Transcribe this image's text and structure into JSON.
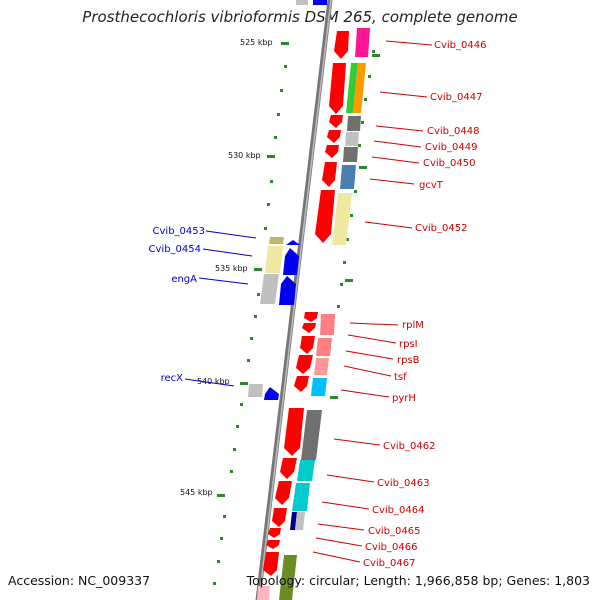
{
  "title": "Prosthecochloris vibrioformis DSM 265, complete genome",
  "footer": {
    "accession": "Accession: NC_009337",
    "summary": "Topology: circular; Length: 1,966,858 bp; Genes: 1,803"
  },
  "scale_labels": [
    "525 kbp",
    "530 kbp",
    "535 kbp",
    "540 kbp",
    "545 kbp"
  ],
  "right_labels": [
    "Cvib_0446",
    "Cvib_0447",
    "Cvib_0448",
    "Cvib_0449",
    "Cvib_0450",
    "gcvT",
    "Cvib_0452",
    "rplM",
    "rpsI",
    "rpsB",
    "tsf",
    "pyrH",
    "Cvib_0462",
    "Cvib_0463",
    "Cvib_0464",
    "Cvib_0465",
    "Cvib_0466",
    "Cvib_0467"
  ],
  "left_labels": [
    "Cvib_0453",
    "Cvib_0454",
    "engA",
    "recX"
  ],
  "colors": {
    "forward_strand": "#ff0000",
    "reverse_strand": "#0000ee",
    "backbone": "#808080",
    "tick": "#2a8a2a",
    "label_right": "#cc0000",
    "label_left": "#0000cc"
  }
}
